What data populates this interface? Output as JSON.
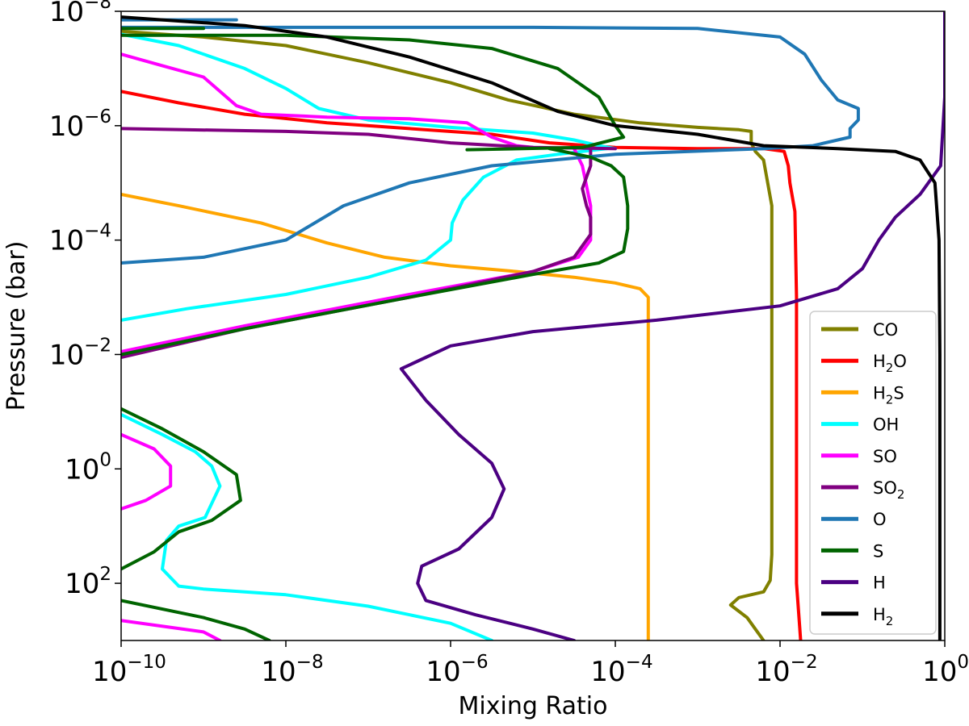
{
  "chart_data": {
    "type": "line",
    "xlabel": "Mixing Ratio",
    "ylabel": "Pressure (bar)",
    "xscale": "log",
    "yscale": "log",
    "x_log10_range": [
      -10,
      0
    ],
    "y_log10_range": [
      -8,
      3
    ],
    "y_inverted": true,
    "grid": false,
    "legend_position": "lower-right",
    "x_ticks": [
      {
        "base": "10",
        "exp": "−10"
      },
      {
        "base": "10",
        "exp": "−8"
      },
      {
        "base": "10",
        "exp": "−6"
      },
      {
        "base": "10",
        "exp": "−4"
      },
      {
        "base": "10",
        "exp": "−2"
      },
      {
        "base": "10",
        "exp": "0"
      }
    ],
    "y_ticks": [
      {
        "base": "10",
        "exp": "−8"
      },
      {
        "base": "10",
        "exp": "−6"
      },
      {
        "base": "10",
        "exp": "−4"
      },
      {
        "base": "10",
        "exp": "−2"
      },
      {
        "base": "10",
        "exp": "0"
      },
      {
        "base": "10",
        "exp": "2"
      }
    ],
    "series": [
      {
        "name": "CO",
        "label": [
          "CO"
        ],
        "color": "#808000",
        "segments": [
          [
            [
              -10,
              -7.65
            ],
            [
              -9,
              -7.55
            ],
            [
              -8,
              -7.4
            ],
            [
              -7,
              -7.1
            ],
            [
              -6,
              -6.75
            ],
            [
              -5.3,
              -6.45
            ],
            [
              -4.5,
              -6.2
            ],
            [
              -3.7,
              -6.05
            ],
            [
              -3,
              -5.97
            ],
            [
              -2.5,
              -5.93
            ],
            [
              -2.35,
              -5.9
            ],
            [
              -2.35,
              -5.7
            ],
            [
              -2.3,
              -5.55
            ],
            [
              -2.2,
              -5.4
            ],
            [
              -2.15,
              -5.0
            ],
            [
              -2.1,
              -4.6
            ],
            [
              -2.1,
              -3.0
            ],
            [
              -2.1,
              0.0
            ],
            [
              -2.1,
              1.5
            ],
            [
              -2.12,
              1.95
            ],
            [
              -2.2,
              2.15
            ],
            [
              -2.5,
              2.25
            ],
            [
              -2.6,
              2.38
            ],
            [
              -2.4,
              2.6
            ],
            [
              -2.3,
              2.8
            ],
            [
              -2.2,
              3.0
            ]
          ]
        ]
      },
      {
        "name": "H2O",
        "label": [
          "H",
          "2",
          "O"
        ],
        "color": "#ff0000",
        "segments": [
          [
            [
              -10,
              -6.6
            ],
            [
              -9.3,
              -6.4
            ],
            [
              -8.5,
              -6.2
            ],
            [
              -7.5,
              -6.05
            ],
            [
              -6.5,
              -5.95
            ],
            [
              -5.5,
              -5.85
            ],
            [
              -4.8,
              -5.7
            ],
            [
              -4,
              -5.62
            ],
            [
              -3,
              -5.6
            ],
            [
              -2.2,
              -5.6
            ],
            [
              -1.95,
              -5.55
            ],
            [
              -1.9,
              -5.3
            ],
            [
              -1.88,
              -5.0
            ],
            [
              -1.82,
              -4.5
            ],
            [
              -1.8,
              -3.0
            ],
            [
              -1.8,
              0.0
            ],
            [
              -1.8,
              2.0
            ],
            [
              -1.76,
              2.8
            ],
            [
              -1.75,
              3.0
            ]
          ]
        ]
      },
      {
        "name": "H2S",
        "label": [
          "H",
          "2",
          "S"
        ],
        "color": "#ffa500",
        "segments": [
          [
            [
              -10,
              -4.8
            ],
            [
              -9.3,
              -4.6
            ],
            [
              -8.3,
              -4.3
            ],
            [
              -7.5,
              -3.95
            ],
            [
              -6.8,
              -3.7
            ],
            [
              -6,
              -3.55
            ],
            [
              -5.2,
              -3.45
            ],
            [
              -4.5,
              -3.35
            ],
            [
              -4,
              -3.25
            ],
            [
              -3.7,
              -3.15
            ],
            [
              -3.6,
              -3.0
            ],
            [
              -3.6,
              -2.5
            ],
            [
              -3.6,
              0.0
            ],
            [
              -3.6,
              3.0
            ]
          ]
        ]
      },
      {
        "name": "OH",
        "label": [
          "OH"
        ],
        "color": "#00ffff",
        "segments": [
          [
            [
              -10,
              -7.6
            ],
            [
              -9.3,
              -7.4
            ],
            [
              -8.5,
              -7.0
            ],
            [
              -8,
              -6.65
            ],
            [
              -7.6,
              -6.3
            ],
            [
              -7,
              -6.1
            ],
            [
              -6,
              -5.97
            ],
            [
              -5,
              -5.87
            ],
            [
              -4.5,
              -5.75
            ],
            [
              -4.2,
              -5.65
            ],
            [
              -4,
              -5.6
            ]
          ],
          [
            [
              -4.1,
              -5.6
            ],
            [
              -4.7,
              -5.5
            ],
            [
              -5.2,
              -5.4
            ],
            [
              -5.6,
              -5.1
            ],
            [
              -5.85,
              -4.7
            ],
            [
              -5.98,
              -4.3
            ],
            [
              -6.0,
              -4.0
            ],
            [
              -6.3,
              -3.65
            ],
            [
              -7,
              -3.35
            ],
            [
              -8,
              -3.05
            ],
            [
              -9.2,
              -2.8
            ],
            [
              -10,
              -2.6
            ]
          ],
          [
            [
              -10,
              -0.95
            ],
            [
              -9.5,
              -0.6
            ],
            [
              -9.1,
              -0.3
            ],
            [
              -8.9,
              -0.05
            ],
            [
              -8.8,
              0.3
            ],
            [
              -8.98,
              0.85
            ],
            [
              -9.3,
              1.0
            ],
            [
              -9.45,
              1.25
            ],
            [
              -9.5,
              1.75
            ],
            [
              -9.3,
              2.05
            ],
            [
              -9,
              2.1
            ],
            [
              -8,
              2.2
            ],
            [
              -7,
              2.4
            ],
            [
              -6,
              2.7
            ],
            [
              -5.5,
              3.0
            ]
          ]
        ]
      },
      {
        "name": "SO",
        "label": [
          "SO"
        ],
        "color": "#ff00ff",
        "segments": [
          [
            [
              -10,
              -7.25
            ],
            [
              -9.5,
              -7.05
            ],
            [
              -9,
              -6.85
            ],
            [
              -8.6,
              -6.35
            ],
            [
              -8.3,
              -6.2
            ],
            [
              -7.5,
              -6.15
            ],
            [
              -6.5,
              -6.12
            ],
            [
              -5.8,
              -6.05
            ],
            [
              -5.5,
              -5.8
            ],
            [
              -5.2,
              -5.65
            ],
            [
              -5,
              -5.62
            ]
          ],
          [
            [
              -4.5,
              -5.6
            ],
            [
              -4.4,
              -5.3
            ],
            [
              -4.3,
              -4.6
            ],
            [
              -4.3,
              -4.0
            ],
            [
              -4.45,
              -3.7
            ],
            [
              -5,
              -3.45
            ],
            [
              -6.5,
              -3.05
            ],
            [
              -8.5,
              -2.5
            ],
            [
              -10,
              -2.05
            ]
          ],
          [
            [
              -10,
              -0.6
            ],
            [
              -9.6,
              -0.35
            ],
            [
              -9.4,
              -0.05
            ],
            [
              -9.4,
              0.3
            ],
            [
              -9.7,
              0.55
            ],
            [
              -10,
              0.7
            ]
          ],
          [
            [
              -10,
              2.65
            ],
            [
              -9,
              2.85
            ],
            [
              -8.8,
              3.0
            ]
          ]
        ]
      },
      {
        "name": "SO2",
        "label": [
          "SO",
          "2",
          ""
        ],
        "color": "#800080",
        "segments": [
          [
            [
              -10,
              -5.95
            ],
            [
              -8,
              -5.9
            ],
            [
              -7,
              -5.85
            ],
            [
              -6,
              -5.7
            ],
            [
              -5,
              -5.62
            ],
            [
              -4,
              -5.6
            ]
          ],
          [
            [
              -4.3,
              -5.6
            ],
            [
              -4.3,
              -5.3
            ],
            [
              -4.4,
              -4.9
            ],
            [
              -4.35,
              -4.6
            ],
            [
              -4.3,
              -4.4
            ],
            [
              -4.3,
              -4.1
            ],
            [
              -4.5,
              -3.7
            ],
            [
              -5,
              -3.45
            ],
            [
              -6.5,
              -3.0
            ],
            [
              -8.5,
              -2.45
            ],
            [
              -10,
              -1.95
            ]
          ]
        ]
      },
      {
        "name": "O",
        "label": [
          "O"
        ],
        "color": "#1f77b4",
        "segments": [
          [
            [
              -10,
              -7.85
            ],
            [
              -8.6,
              -7.85
            ]
          ],
          [
            [
              -10,
              -7.72
            ],
            [
              -5,
              -7.72
            ],
            [
              -3,
              -7.7
            ],
            [
              -2,
              -7.55
            ],
            [
              -1.7,
              -7.25
            ],
            [
              -1.5,
              -6.8
            ],
            [
              -1.3,
              -6.45
            ],
            [
              -1.05,
              -6.3
            ],
            [
              -1.05,
              -6.1
            ],
            [
              -1.15,
              -5.95
            ],
            [
              -1.15,
              -5.8
            ],
            [
              -1.6,
              -5.65
            ],
            [
              -2.2,
              -5.6
            ],
            [
              -4,
              -5.5
            ],
            [
              -5.5,
              -5.3
            ],
            [
              -6.5,
              -5.0
            ],
            [
              -7.3,
              -4.6
            ],
            [
              -8,
              -4.0
            ],
            [
              -9,
              -3.7
            ],
            [
              -10,
              -3.6
            ]
          ]
        ]
      },
      {
        "name": "S",
        "label": [
          "S"
        ],
        "color": "#006400",
        "segments": [
          [
            [
              -10,
              -7.7
            ],
            [
              -9,
              -7.7
            ]
          ],
          [
            [
              -10,
              -7.58
            ],
            [
              -8,
              -7.58
            ],
            [
              -6.5,
              -7.5
            ],
            [
              -5.5,
              -7.35
            ],
            [
              -4.7,
              -7.0
            ],
            [
              -4.2,
              -6.5
            ],
            [
              -4.0,
              -6.0
            ],
            [
              -3.9,
              -5.8
            ],
            [
              -4.4,
              -5.62
            ],
            [
              -5.8,
              -5.58
            ]
          ],
          [
            [
              -4.8,
              -5.6
            ],
            [
              -4.3,
              -5.45
            ],
            [
              -4.05,
              -5.3
            ],
            [
              -3.9,
              -5.1
            ],
            [
              -3.85,
              -4.6
            ],
            [
              -3.85,
              -4.2
            ],
            [
              -3.9,
              -3.8
            ],
            [
              -4.2,
              -3.6
            ],
            [
              -5,
              -3.4
            ],
            [
              -6.5,
              -3.0
            ],
            [
              -8.5,
              -2.45
            ],
            [
              -10,
              -2.0
            ]
          ],
          [
            [
              -10,
              -1.05
            ],
            [
              -9.5,
              -0.7
            ],
            [
              -9.0,
              -0.3
            ],
            [
              -8.6,
              0.1
            ],
            [
              -8.55,
              0.55
            ],
            [
              -8.9,
              0.9
            ],
            [
              -9.3,
              1.1
            ],
            [
              -9.6,
              1.45
            ],
            [
              -10,
              1.75
            ]
          ],
          [
            [
              -10,
              2.3
            ],
            [
              -9,
              2.6
            ],
            [
              -8.5,
              2.8
            ],
            [
              -8.2,
              3.0
            ]
          ]
        ]
      },
      {
        "name": "H",
        "label": [
          "H"
        ],
        "color": "#4b0082",
        "segments": [
          [
            [
              -6.3,
              -1.95
            ],
            [
              -6.6,
              -1.75
            ],
            [
              -6.3,
              -1.2
            ],
            [
              -5.9,
              -0.6
            ],
            [
              -5.5,
              -0.1
            ],
            [
              -5.35,
              0.35
            ],
            [
              -5.5,
              0.85
            ],
            [
              -5.9,
              1.4
            ],
            [
              -6.35,
              1.7
            ],
            [
              -6.4,
              2.0
            ],
            [
              -6.3,
              2.3
            ],
            [
              -5.7,
              2.55
            ],
            [
              -5,
              2.8
            ],
            [
              -4.5,
              3.0
            ]
          ],
          [
            [
              -6.3,
              -1.95
            ],
            [
              -6.0,
              -2.15
            ],
            [
              -5,
              -2.4
            ],
            [
              -3.5,
              -2.6
            ],
            [
              -2,
              -2.85
            ],
            [
              -1.3,
              -3.15
            ],
            [
              -1.0,
              -3.5
            ],
            [
              -0.8,
              -4.0
            ],
            [
              -0.6,
              -4.4
            ],
            [
              -0.3,
              -4.8
            ],
            [
              -0.05,
              -5.3
            ],
            [
              0,
              -6.5
            ],
            [
              0,
              -8.0
            ]
          ]
        ]
      },
      {
        "name": "H2",
        "label": [
          "H",
          "2",
          ""
        ],
        "color": "#000000",
        "segments": [
          [
            [
              -10,
              -7.9
            ],
            [
              -8.5,
              -7.75
            ],
            [
              -7.5,
              -7.55
            ],
            [
              -6.5,
              -7.2
            ],
            [
              -5.5,
              -6.75
            ],
            [
              -4.7,
              -6.25
            ],
            [
              -4,
              -6.0
            ],
            [
              -3,
              -5.85
            ],
            [
              -2.2,
              -5.65
            ],
            [
              -1.3,
              -5.6
            ],
            [
              -0.6,
              -5.55
            ],
            [
              -0.3,
              -5.4
            ],
            [
              -0.12,
              -5.0
            ],
            [
              -0.07,
              -4.0
            ],
            [
              -0.06,
              -2.0
            ],
            [
              -0.06,
              3.0
            ]
          ]
        ]
      }
    ]
  }
}
